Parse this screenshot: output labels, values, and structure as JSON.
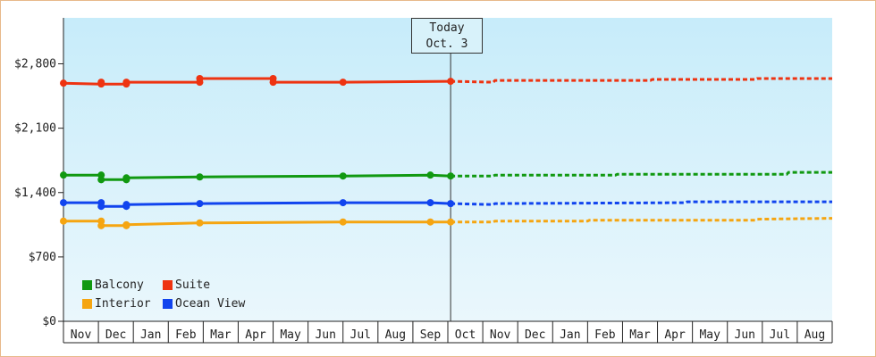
{
  "chart_data": {
    "type": "line",
    "title": "",
    "xlabel": "",
    "ylabel": "",
    "ylim": [
      0,
      3300
    ],
    "y_ticks": [
      {
        "value": 0,
        "label": "$0"
      },
      {
        "value": 700,
        "label": "$700"
      },
      {
        "value": 1400,
        "label": "$1,400"
      },
      {
        "value": 2100,
        "label": "$2,100"
      },
      {
        "value": 2800,
        "label": "$2,800"
      }
    ],
    "x_months": [
      "Nov",
      "Dec",
      "Jan",
      "Feb",
      "Mar",
      "Apr",
      "May",
      "Jun",
      "Jul",
      "Aug",
      "Sep",
      "Oct",
      "Nov",
      "Dec",
      "Jan",
      "Feb",
      "Mar",
      "Apr",
      "May",
      "Jun",
      "Jul",
      "Aug"
    ],
    "today": {
      "line1": "Today",
      "line2": "Oct. 3",
      "x": 11.08
    },
    "grid": false,
    "legend_position": "bottom-left",
    "background_gradient": [
      "#c7ecfa",
      "#eaf7fc"
    ],
    "series": [
      {
        "name": "Balcony",
        "color": "#119911",
        "history": [
          [
            0,
            1590
          ],
          [
            1.08,
            1590
          ],
          [
            1.08,
            1540
          ],
          [
            1.8,
            1540
          ],
          [
            1.8,
            1560
          ],
          [
            3.9,
            1570
          ],
          [
            8.0,
            1580
          ],
          [
            10.5,
            1590
          ],
          [
            11.08,
            1580
          ]
        ],
        "markers": [
          [
            0,
            1590
          ],
          [
            1.08,
            1590
          ],
          [
            1.08,
            1540
          ],
          [
            1.8,
            1540
          ],
          [
            1.8,
            1560
          ],
          [
            3.9,
            1570
          ],
          [
            8.0,
            1580
          ],
          [
            10.5,
            1590
          ],
          [
            11.08,
            1580
          ]
        ],
        "forecast": [
          [
            11.08,
            1580
          ],
          [
            12.3,
            1580
          ],
          [
            12.35,
            1590
          ],
          [
            15.8,
            1590
          ],
          [
            15.85,
            1600
          ],
          [
            20.7,
            1600
          ],
          [
            20.75,
            1620
          ],
          [
            22,
            1620
          ]
        ]
      },
      {
        "name": "Suite",
        "color": "#ee3311",
        "history": [
          [
            0,
            2590
          ],
          [
            1.08,
            2580
          ],
          [
            1.8,
            2580
          ],
          [
            1.8,
            2600
          ],
          [
            3.9,
            2600
          ],
          [
            3.9,
            2640
          ],
          [
            6.0,
            2640
          ],
          [
            6.0,
            2600
          ],
          [
            8.0,
            2600
          ],
          [
            11.08,
            2610
          ]
        ],
        "markers": [
          [
            0,
            2590
          ],
          [
            1.08,
            2580
          ],
          [
            1.08,
            2600
          ],
          [
            1.8,
            2580
          ],
          [
            1.8,
            2600
          ],
          [
            3.9,
            2600
          ],
          [
            3.9,
            2640
          ],
          [
            6.0,
            2640
          ],
          [
            6.0,
            2600
          ],
          [
            8.0,
            2600
          ],
          [
            11.08,
            2610
          ]
        ],
        "forecast": [
          [
            11.08,
            2610
          ],
          [
            12.3,
            2600
          ],
          [
            12.35,
            2620
          ],
          [
            16.8,
            2620
          ],
          [
            16.85,
            2630
          ],
          [
            19.8,
            2630
          ],
          [
            19.85,
            2640
          ],
          [
            22,
            2640
          ]
        ]
      },
      {
        "name": "Interior",
        "color": "#f5a511",
        "history": [
          [
            0,
            1090
          ],
          [
            1.08,
            1090
          ],
          [
            1.08,
            1040
          ],
          [
            1.8,
            1040
          ],
          [
            1.8,
            1050
          ],
          [
            3.9,
            1070
          ],
          [
            8.0,
            1080
          ],
          [
            10.5,
            1080
          ],
          [
            11.08,
            1080
          ]
        ],
        "markers": [
          [
            0,
            1090
          ],
          [
            1.08,
            1090
          ],
          [
            1.08,
            1040
          ],
          [
            1.8,
            1040
          ],
          [
            1.8,
            1050
          ],
          [
            3.9,
            1070
          ],
          [
            8.0,
            1080
          ],
          [
            10.5,
            1080
          ],
          [
            11.08,
            1080
          ]
        ],
        "forecast": [
          [
            11.08,
            1080
          ],
          [
            12.3,
            1080
          ],
          [
            12.35,
            1090
          ],
          [
            15.0,
            1090
          ],
          [
            15.05,
            1100
          ],
          [
            19.8,
            1100
          ],
          [
            19.85,
            1110
          ],
          [
            22,
            1120
          ]
        ]
      },
      {
        "name": "Ocean View",
        "color": "#1144ee",
        "history": [
          [
            0,
            1290
          ],
          [
            1.08,
            1290
          ],
          [
            1.08,
            1250
          ],
          [
            1.8,
            1250
          ],
          [
            1.8,
            1270
          ],
          [
            3.9,
            1280
          ],
          [
            8.0,
            1290
          ],
          [
            10.5,
            1290
          ],
          [
            11.08,
            1280
          ]
        ],
        "markers": [
          [
            0,
            1290
          ],
          [
            1.08,
            1290
          ],
          [
            1.08,
            1250
          ],
          [
            1.8,
            1250
          ],
          [
            1.8,
            1270
          ],
          [
            3.9,
            1280
          ],
          [
            8.0,
            1290
          ],
          [
            10.5,
            1290
          ],
          [
            11.08,
            1280
          ]
        ],
        "forecast": [
          [
            11.08,
            1280
          ],
          [
            12.3,
            1270
          ],
          [
            12.35,
            1280
          ],
          [
            17.8,
            1290
          ],
          [
            17.85,
            1300
          ],
          [
            22,
            1300
          ]
        ]
      }
    ]
  }
}
